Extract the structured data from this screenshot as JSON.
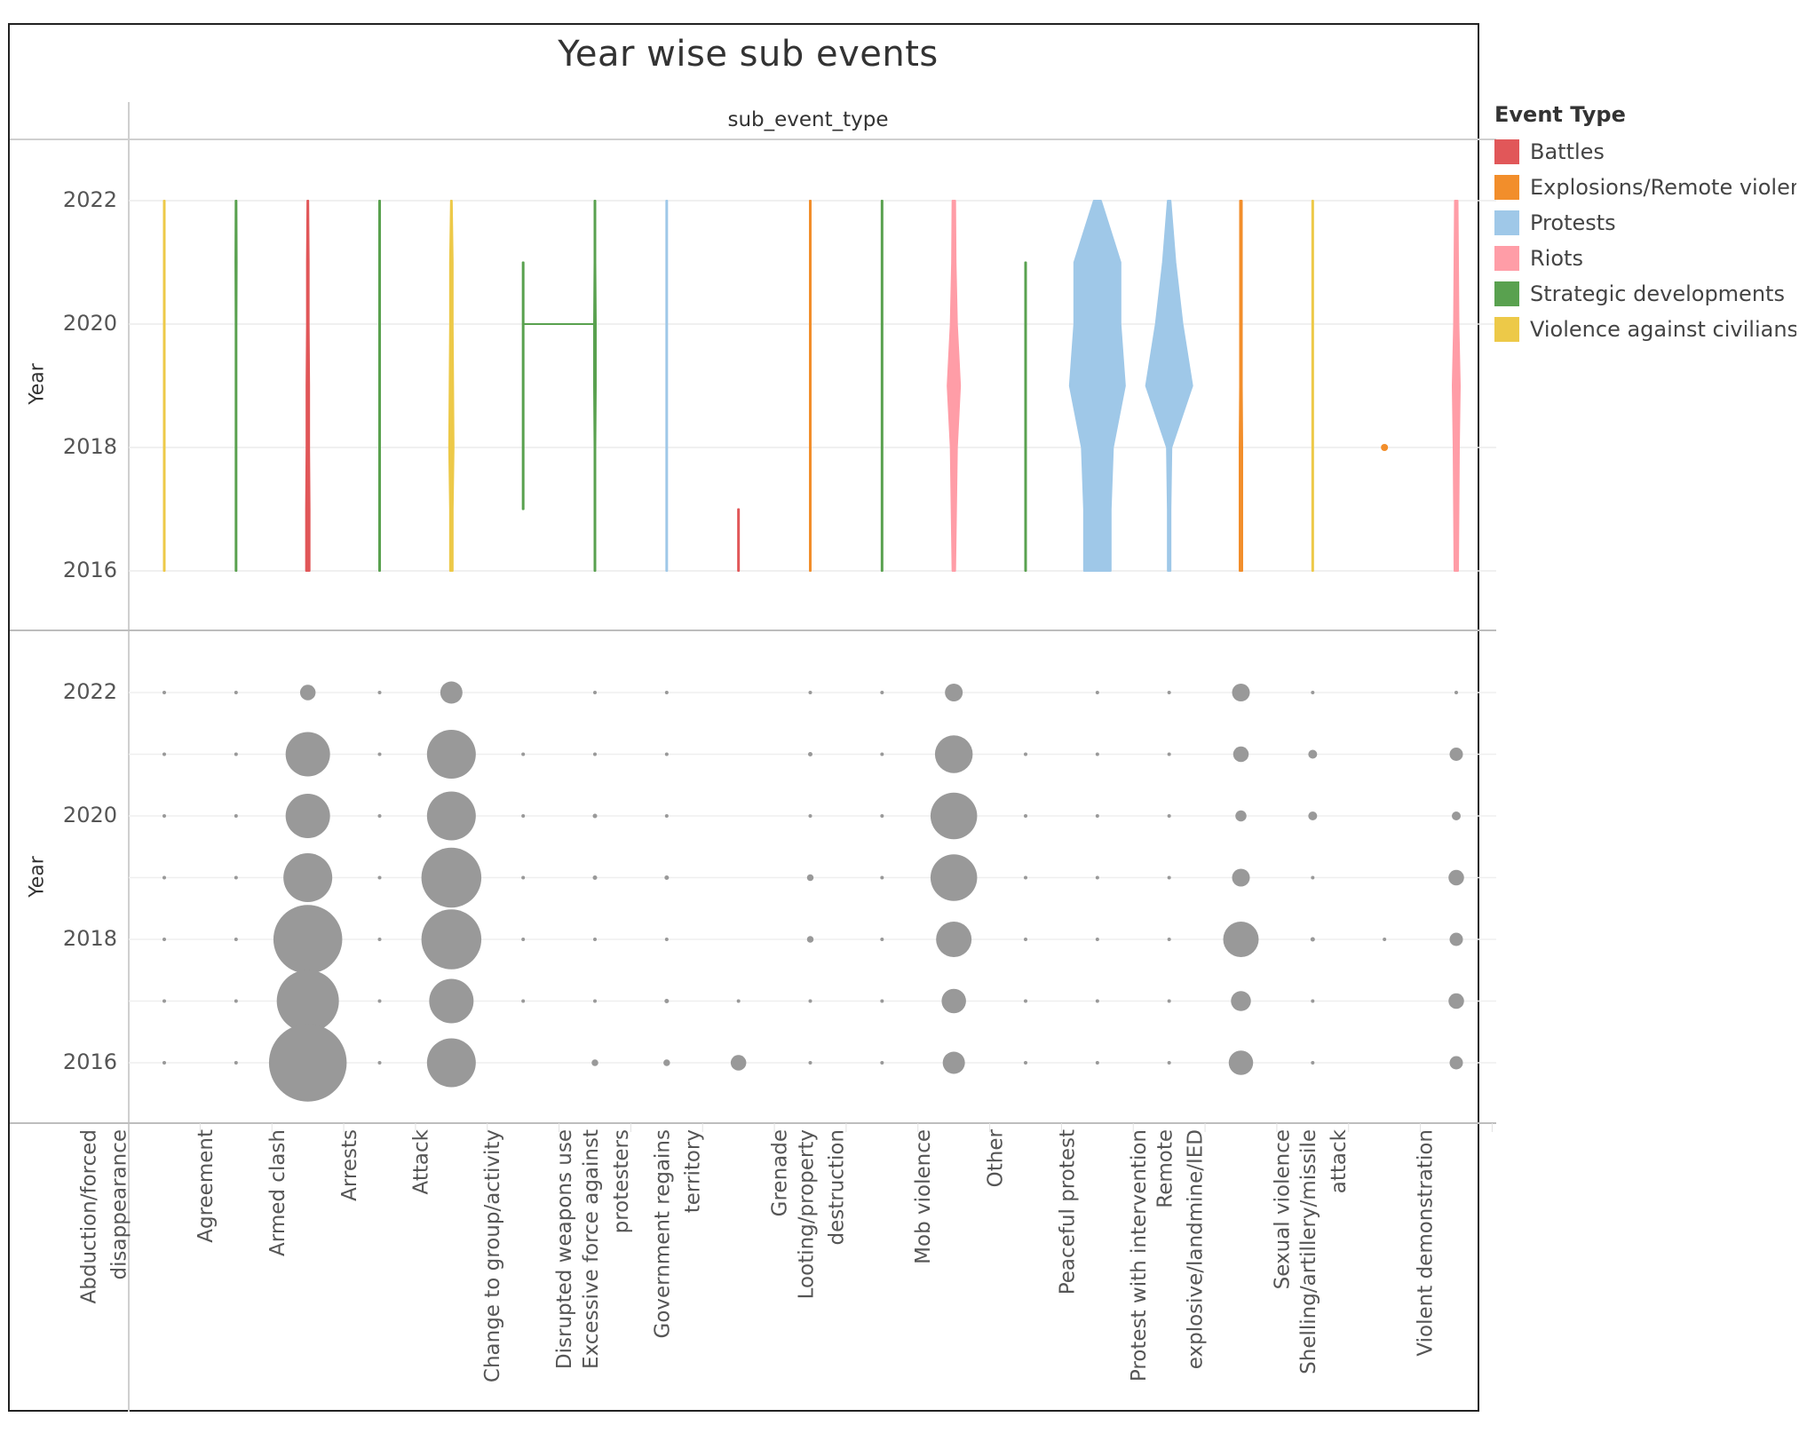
{
  "chart_data": {
    "title": "Year wise sub events",
    "column_header": "sub_event_type",
    "ylabel": "Year",
    "y_ticks": [
      "2022",
      "2020",
      "2018",
      "2016"
    ],
    "categories": [
      "Abduction/forced\ndisappearance",
      "Agreement",
      "Armed clash",
      "Arrests",
      "Attack",
      "Change to group/activity",
      "Disrupted weapons use",
      "Excessive force against\nprotesters",
      "Government regains\nterritory",
      "Grenade",
      "Looting/property\ndestruction",
      "Mob violence",
      "Other",
      "Peaceful protest",
      "Protest with intervention",
      "Remote\nexplosive/landmine/IED",
      "Sexual violence",
      "Shelling/artillery/missile\nattack",
      "Violent demonstration"
    ],
    "legend": {
      "title": "Event Type",
      "items": [
        {
          "label": "Battles",
          "color": "#e15759"
        },
        {
          "label": "Explosions/Remote violence",
          "color": "#f28e2b"
        },
        {
          "label": "Protests",
          "color": "#9fc8e8"
        },
        {
          "label": "Riots",
          "color": "#ff9da7"
        },
        {
          "label": "Strategic developments",
          "color": "#59a14f"
        },
        {
          "label": "Violence against civilians",
          "color": "#edc948"
        }
      ]
    },
    "top_panel": {
      "type": "line",
      "description_of_marks": "vertical year-range line per sub event, width encodes count",
      "ylim": [
        2015.7,
        2022.3
      ],
      "lines": [
        {
          "category": "Abduction/forced\ndisappearance",
          "event_type": "Violence against civilians",
          "min_year": 2016,
          "max_year": 2022,
          "width_profile": [
            1,
            1,
            1,
            1,
            1,
            1,
            1
          ]
        },
        {
          "category": "Agreement",
          "event_type": "Strategic developments",
          "min_year": 2016,
          "max_year": 2022,
          "width_profile": [
            1,
            1,
            1,
            1,
            1,
            1.5,
            1
          ]
        },
        {
          "category": "Armed clash",
          "event_type": "Battles",
          "min_year": 2016,
          "max_year": 2022,
          "width_profile": [
            4,
            4,
            3,
            3,
            2,
            2,
            1
          ]
        },
        {
          "category": "Arrests",
          "event_type": "Strategic developments",
          "min_year": 2016,
          "max_year": 2022,
          "width_profile": [
            1,
            1,
            1,
            1,
            1,
            1,
            1
          ]
        },
        {
          "category": "Attack",
          "event_type": "Violence against civilians",
          "min_year": 2016,
          "max_year": 2022,
          "width_profile": [
            3,
            3,
            5,
            4,
            3,
            3,
            1
          ]
        },
        {
          "category": "Change to group/activity",
          "event_type": "Strategic developments",
          "min_year": 2017,
          "max_year": 2021,
          "width_profile": [
            1,
            1,
            1,
            1,
            1
          ]
        },
        {
          "category": "Disrupted weapons use",
          "event_type": "Strategic developments",
          "min_year": 2016,
          "max_year": 2022,
          "width_profile": [
            1,
            1,
            1,
            2,
            2,
            1,
            1
          ]
        },
        {
          "category": "Excessive force against\nprotesters",
          "event_type": "Protests",
          "min_year": 2016,
          "max_year": 2022,
          "width_profile": [
            1,
            1,
            1,
            1,
            1,
            1,
            1
          ]
        },
        {
          "category": "Government regains\nterritory",
          "event_type": "Battles",
          "min_year": 2016,
          "max_year": 2017,
          "width_profile": [
            1,
            1
          ]
        },
        {
          "category": "Grenade",
          "event_type": "Explosions/Remote violence",
          "min_year": 2016,
          "max_year": 2022,
          "width_profile": [
            1,
            1,
            1,
            1,
            1,
            1,
            1
          ]
        },
        {
          "category": "Looting/property\ndestruction",
          "event_type": "Strategic developments",
          "min_year": 2016,
          "max_year": 2022,
          "width_profile": [
            1,
            1,
            1,
            1,
            1,
            1,
            1
          ]
        },
        {
          "category": "Mob violence",
          "event_type": "Riots",
          "min_year": 2016,
          "max_year": 2022,
          "width_profile": [
            3,
            5,
            7,
            14,
            7,
            4,
            3
          ]
        },
        {
          "category": "Other",
          "event_type": "Strategic developments",
          "min_year": 2016,
          "max_year": 2021,
          "width_profile": [
            1,
            1,
            1,
            1,
            1,
            1
          ]
        },
        {
          "category": "Peaceful protest",
          "event_type": "Protests",
          "min_year": 2016,
          "max_year": 2022,
          "width_profile": [
            30,
            30,
            35,
            62,
            52,
            52,
            8
          ]
        },
        {
          "category": "Protest with intervention",
          "event_type": "Protests",
          "min_year": 2016,
          "max_year": 2022,
          "width_profile": [
            3,
            3,
            5,
            52,
            30,
            14,
            3
          ]
        },
        {
          "category": "Remote\nexplosive/landmine/IED",
          "event_type": "Explosions/Remote violence",
          "min_year": 2016,
          "max_year": 2022,
          "width_profile": [
            3,
            3,
            3,
            2,
            2,
            2,
            2
          ]
        },
        {
          "category": "Sexual violence",
          "event_type": "Violence against civilians",
          "min_year": 2016,
          "max_year": 2022,
          "width_profile": [
            1,
            1,
            1,
            1,
            1,
            1,
            1
          ]
        },
        {
          "category": "Shelling/artillery/missile\nattack",
          "event_type": "Explosions/Remote violence",
          "min_year": 2018,
          "max_year": 2018,
          "width_profile": [
            6
          ]
        },
        {
          "category": "Violent demonstration",
          "event_type": "Riots",
          "min_year": 2016,
          "max_year": 2022,
          "width_profile": [
            4,
            5,
            6,
            8,
            5,
            4,
            3
          ]
        }
      ]
    },
    "bottom_panel": {
      "type": "scatter",
      "description_of_marks": "circle per sub event and year, size encodes count",
      "years": [
        2022,
        2021,
        2020,
        2019,
        2018,
        2017,
        2016
      ],
      "ylim": [
        2015.3,
        2022.6
      ],
      "point_color": "#999999",
      "sizes": [
        [
          1,
          1,
          1,
          1,
          1,
          1,
          1
        ],
        [
          1,
          1,
          1,
          1,
          1,
          1,
          1
        ],
        [
          7,
          20,
          20,
          22,
          31,
          28,
          35
        ],
        [
          1,
          1,
          1,
          1,
          1,
          1,
          1
        ],
        [
          10,
          22,
          22,
          27,
          27,
          20,
          22
        ],
        [
          0,
          1,
          1,
          1,
          1,
          1,
          0
        ],
        [
          1,
          1,
          2,
          2,
          1,
          1,
          3
        ],
        [
          1,
          1,
          1,
          2,
          1,
          2,
          3
        ],
        [
          0,
          0,
          0,
          0,
          0,
          1,
          7
        ],
        [
          1,
          2,
          1,
          3,
          3,
          1,
          1
        ],
        [
          1,
          1,
          1,
          1,
          1,
          1,
          1
        ],
        [
          8,
          17,
          21,
          21,
          16,
          11,
          10
        ],
        [
          0,
          1,
          1,
          1,
          1,
          1,
          1
        ],
        [
          1,
          1,
          1,
          1,
          1,
          1,
          1
        ],
        [
          1,
          1,
          1,
          1,
          1,
          1,
          1
        ],
        [
          8,
          7,
          5,
          8,
          16,
          9,
          11
        ],
        [
          1,
          4,
          4,
          1,
          2,
          1,
          1
        ],
        [
          0,
          0,
          0,
          0,
          1,
          0,
          0
        ],
        [
          1,
          6,
          4,
          7,
          6,
          7,
          6
        ]
      ]
    }
  }
}
